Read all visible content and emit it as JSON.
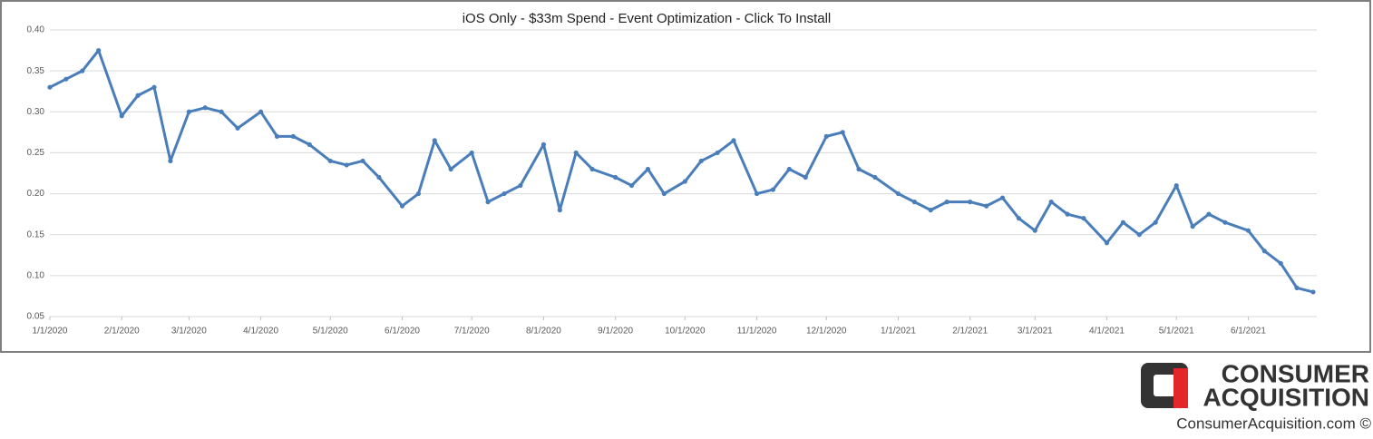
{
  "chart_data": {
    "type": "line",
    "title": "iOS Only - $33m Spend - Event Optimization - Click To Install",
    "x": [
      "2020-01-01",
      "2020-01-08",
      "2020-01-15",
      "2020-01-22",
      "2020-02-01",
      "2020-02-08",
      "2020-02-15",
      "2020-02-22",
      "2020-03-01",
      "2020-03-08",
      "2020-03-15",
      "2020-03-22",
      "2020-04-01",
      "2020-04-08",
      "2020-04-15",
      "2020-04-22",
      "2020-05-01",
      "2020-05-08",
      "2020-05-15",
      "2020-05-22",
      "2020-06-01",
      "2020-06-08",
      "2020-06-15",
      "2020-06-22",
      "2020-07-01",
      "2020-07-08",
      "2020-07-15",
      "2020-07-22",
      "2020-08-01",
      "2020-08-08",
      "2020-08-15",
      "2020-08-22",
      "2020-09-01",
      "2020-09-08",
      "2020-09-15",
      "2020-09-22",
      "2020-10-01",
      "2020-10-08",
      "2020-10-15",
      "2020-10-22",
      "2020-11-01",
      "2020-11-08",
      "2020-11-15",
      "2020-11-22",
      "2020-12-01",
      "2020-12-08",
      "2020-12-15",
      "2020-12-22",
      "2021-01-01",
      "2021-01-08",
      "2021-01-15",
      "2021-01-22",
      "2021-02-01",
      "2021-02-08",
      "2021-02-15",
      "2021-02-22",
      "2021-03-01",
      "2021-03-08",
      "2021-03-15",
      "2021-03-22",
      "2021-04-01",
      "2021-04-08",
      "2021-04-15",
      "2021-04-22",
      "2021-05-01",
      "2021-05-08",
      "2021-05-15",
      "2021-05-22",
      "2021-06-01",
      "2021-06-08",
      "2021-06-15",
      "2021-06-22",
      "2021-06-29"
    ],
    "series": [
      {
        "name": "Click To Install",
        "color": "#4a7ebb",
        "values": [
          0.33,
          0.34,
          0.35,
          0.375,
          0.295,
          0.32,
          0.33,
          0.24,
          0.3,
          0.305,
          0.3,
          0.28,
          0.3,
          0.27,
          0.27,
          0.26,
          0.24,
          0.235,
          0.24,
          0.22,
          0.185,
          0.2,
          0.265,
          0.23,
          0.25,
          0.19,
          0.2,
          0.21,
          0.26,
          0.18,
          0.25,
          0.23,
          0.22,
          0.21,
          0.23,
          0.2,
          0.215,
          0.24,
          0.25,
          0.265,
          0.2,
          0.205,
          0.23,
          0.22,
          0.27,
          0.275,
          0.23,
          0.22,
          0.2,
          0.19,
          0.18,
          0.19,
          0.19,
          0.185,
          0.195,
          0.17,
          0.155,
          0.19,
          0.175,
          0.17,
          0.14,
          0.165,
          0.15,
          0.165,
          0.21,
          0.16,
          0.175,
          0.165,
          0.155,
          0.13,
          0.115,
          0.085,
          0.08
        ]
      }
    ],
    "xlim": [
      "2020-01-01",
      "2021-06-29"
    ],
    "xticks": [
      {
        "value": "2020-01-01",
        "label": "1/1/2020"
      },
      {
        "value": "2020-02-01",
        "label": "2/1/2020"
      },
      {
        "value": "2020-03-01",
        "label": "3/1/2020"
      },
      {
        "value": "2020-04-01",
        "label": "4/1/2020"
      },
      {
        "value": "2020-05-01",
        "label": "5/1/2020"
      },
      {
        "value": "2020-06-01",
        "label": "6/1/2020"
      },
      {
        "value": "2020-07-01",
        "label": "7/1/2020"
      },
      {
        "value": "2020-08-01",
        "label": "8/1/2020"
      },
      {
        "value": "2020-09-01",
        "label": "9/1/2020"
      },
      {
        "value": "2020-10-01",
        "label": "10/1/2020"
      },
      {
        "value": "2020-11-01",
        "label": "11/1/2020"
      },
      {
        "value": "2020-12-01",
        "label": "12/1/2020"
      },
      {
        "value": "2021-01-01",
        "label": "1/1/2021"
      },
      {
        "value": "2021-02-01",
        "label": "2/1/2021"
      },
      {
        "value": "2021-03-01",
        "label": "3/1/2021"
      },
      {
        "value": "2021-04-01",
        "label": "4/1/2021"
      },
      {
        "value": "2021-05-01",
        "label": "5/1/2021"
      },
      {
        "value": "2021-06-01",
        "label": "6/1/2021"
      }
    ],
    "ylim": [
      0.05,
      0.4
    ],
    "yticks": [
      {
        "value": 0.05,
        "label": "0.05"
      },
      {
        "value": 0.1,
        "label": "0.10"
      },
      {
        "value": 0.15,
        "label": "0.15"
      },
      {
        "value": 0.2,
        "label": "0.20"
      },
      {
        "value": 0.25,
        "label": "0.25"
      },
      {
        "value": 0.3,
        "label": "0.30"
      },
      {
        "value": 0.35,
        "label": "0.35"
      },
      {
        "value": 0.4,
        "label": "0.40"
      }
    ],
    "grid": true
  },
  "branding": {
    "line1": "CONSUMER",
    "line2": "ACQUISITION",
    "url": "ConsumerAcquisition.com ©"
  }
}
